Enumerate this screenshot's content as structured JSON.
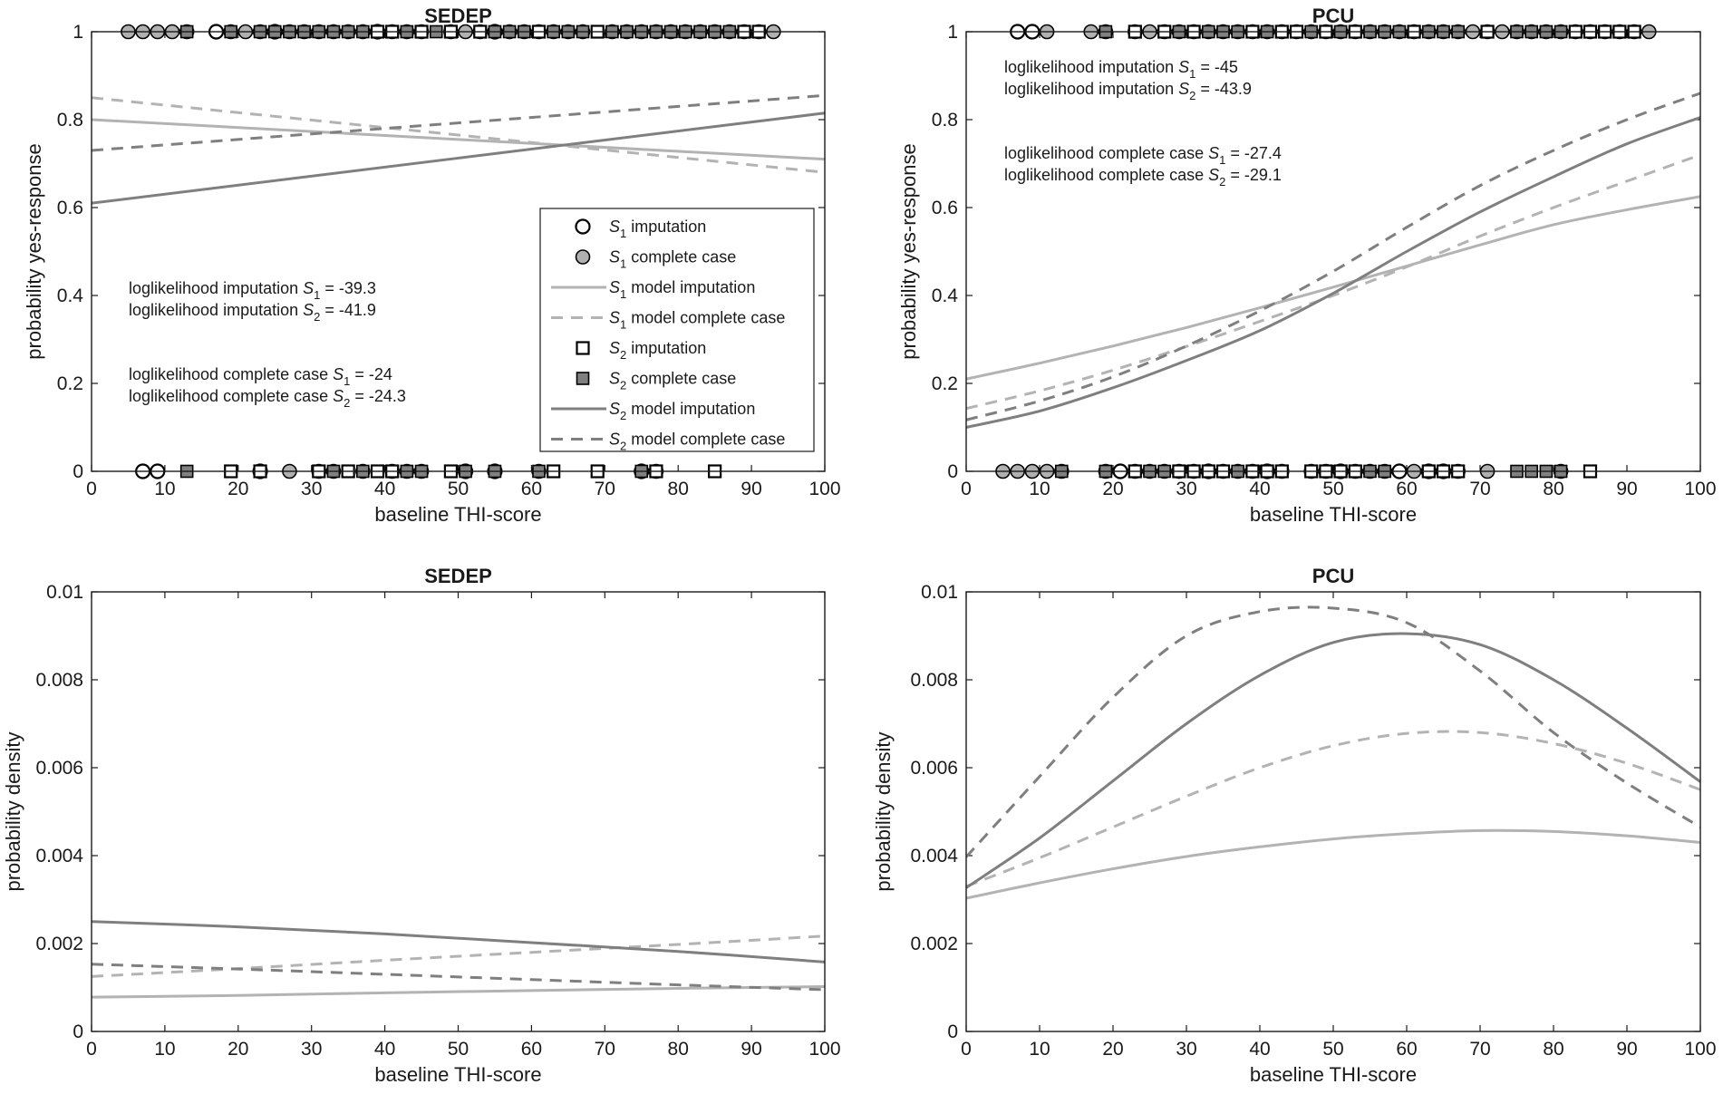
{
  "colors": {
    "s1_light": "#b3b3b3",
    "s1_marker_fill": "#b0b0b0",
    "s2_dark": "#7f7f7f",
    "s2_marker_fill": "#808080",
    "open_fill": "#ffffff",
    "axis": "#1a1a1a"
  },
  "legend": {
    "items": [
      {
        "key": "s1_imp_marker",
        "symbol": "open-circle",
        "sym": "S",
        "sub": "1",
        "text": "imputation"
      },
      {
        "key": "s1_cc_marker",
        "symbol": "filled-circle",
        "sym": "S",
        "sub": "1",
        "text": "complete case"
      },
      {
        "key": "s1_model_imp",
        "symbol": "solid-light",
        "sym": "S",
        "sub": "1",
        "text": "model imputation"
      },
      {
        "key": "s1_model_cc",
        "symbol": "dashed-light",
        "sym": "S",
        "sub": "1",
        "text": "model complete case"
      },
      {
        "key": "s2_imp_marker",
        "symbol": "open-square",
        "sym": "S",
        "sub": "2",
        "text": "imputation"
      },
      {
        "key": "s2_cc_marker",
        "symbol": "filled-square",
        "sym": "S",
        "sub": "2",
        "text": "complete case"
      },
      {
        "key": "s2_model_imp",
        "symbol": "solid-dark",
        "sym": "S",
        "sub": "2",
        "text": "model imputation"
      },
      {
        "key": "s2_model_cc",
        "symbol": "dashed-dark",
        "sym": "S",
        "sub": "2",
        "text": "model complete case"
      }
    ]
  },
  "chart_data": [
    {
      "id": "sedep-response",
      "type": "line",
      "title": "SEDEP",
      "xlabel": "baseline THI-score",
      "ylabel": "probability yes-response",
      "xlim": [
        0,
        100
      ],
      "ylim": [
        0,
        1
      ],
      "xticks": [
        "0",
        "10",
        "20",
        "30",
        "40",
        "50",
        "60",
        "70",
        "80",
        "90",
        "100"
      ],
      "yticks": [
        "0",
        "0.2",
        "0.4",
        "0.6",
        "0.8",
        "1"
      ],
      "legend": true,
      "annotations": [
        {
          "pre": "loglikelihood imputation ",
          "sym": "S",
          "sub": "1",
          "post": " = -39.3"
        },
        {
          "pre": "loglikelihood imputation ",
          "sym": "S",
          "sub": "2",
          "post": " = -41.9"
        },
        {
          "pre": "loglikelihood complete case ",
          "sym": "S",
          "sub": "1",
          "post": " = -24"
        },
        {
          "pre": "loglikelihood complete case ",
          "sym": "S",
          "sub": "2",
          "post": " = -24.3"
        }
      ],
      "series": [
        {
          "name": "S1 model imputation",
          "style": "solid-light",
          "x": [
            0,
            100
          ],
          "y": [
            0.8,
            0.71
          ]
        },
        {
          "name": "S1 model complete case",
          "style": "dashed-light",
          "x": [
            0,
            100
          ],
          "y": [
            0.85,
            0.68
          ]
        },
        {
          "name": "S2 model imputation",
          "style": "solid-dark",
          "x": [
            0,
            100
          ],
          "y": [
            0.61,
            0.815
          ]
        },
        {
          "name": "S2 model complete case",
          "style": "dashed-dark",
          "x": [
            0,
            100
          ],
          "y": [
            0.73,
            0.855
          ]
        }
      ],
      "markers": [
        {
          "type": "filled-circle",
          "y": 1,
          "x": [
            5,
            7,
            9,
            11,
            13,
            19,
            21,
            23,
            27,
            29,
            31,
            33,
            35,
            37,
            41,
            43,
            45,
            49,
            51,
            53,
            55,
            57,
            59,
            61,
            63,
            65,
            67,
            71,
            73,
            75,
            77,
            79,
            81,
            83,
            85,
            87,
            89,
            91,
            93
          ]
        },
        {
          "type": "open-circle",
          "y": 1,
          "x": [
            17,
            25,
            39,
            55
          ]
        },
        {
          "type": "filled-square",
          "y": 1,
          "x": [
            13,
            19,
            23,
            25,
            27,
            29,
            31,
            33,
            35,
            37,
            43,
            47,
            55,
            57,
            59,
            61,
            63,
            65,
            67,
            71,
            73,
            75,
            77,
            79,
            81,
            83,
            85,
            87
          ]
        },
        {
          "type": "open-square",
          "y": 1,
          "x": [
            39,
            41,
            45,
            49,
            53,
            61,
            69,
            89,
            91
          ]
        },
        {
          "type": "open-circle",
          "y": 0,
          "x": [
            7,
            9,
            23,
            51,
            55,
            75
          ]
        },
        {
          "type": "filled-circle",
          "y": 0,
          "x": [
            27,
            31,
            33,
            37,
            41,
            43,
            45,
            51,
            55,
            61,
            75,
            77
          ]
        },
        {
          "type": "filled-square",
          "y": 0,
          "x": [
            13,
            33,
            35,
            37,
            43,
            45,
            51,
            55,
            61,
            63,
            75,
            77
          ]
        },
        {
          "type": "open-square",
          "y": 0,
          "x": [
            19,
            23,
            31,
            35,
            39,
            41,
            49,
            63,
            69,
            77,
            85
          ]
        }
      ]
    },
    {
      "id": "pcu-response",
      "type": "line",
      "title": "PCU",
      "xlabel": "baseline THI-score",
      "ylabel": "probability yes-response",
      "xlim": [
        0,
        100
      ],
      "ylim": [
        0,
        1
      ],
      "xticks": [
        "0",
        "10",
        "20",
        "30",
        "40",
        "50",
        "60",
        "70",
        "80",
        "90",
        "100"
      ],
      "yticks": [
        "0",
        "0.2",
        "0.4",
        "0.6",
        "0.8",
        "1"
      ],
      "legend": false,
      "annotations": [
        {
          "pre": "loglikelihood imputation ",
          "sym": "S",
          "sub": "1",
          "post": " = -45"
        },
        {
          "pre": "loglikelihood imputation ",
          "sym": "S",
          "sub": "2",
          "post": " = -43.9"
        },
        {
          "pre": "loglikelihood complete case ",
          "sym": "S",
          "sub": "1",
          "post": " = -27.4"
        },
        {
          "pre": "loglikelihood complete case ",
          "sym": "S",
          "sub": "2",
          "post": " = -29.1"
        }
      ],
      "series": [
        {
          "name": "S1 model imputation",
          "style": "solid-light",
          "x": [
            0,
            10,
            20,
            30,
            40,
            50,
            60,
            70,
            80,
            90,
            100
          ],
          "y": [
            0.21,
            0.246,
            0.285,
            0.327,
            0.372,
            0.419,
            0.467,
            0.515,
            0.561,
            0.595,
            0.625
          ]
        },
        {
          "name": "S1 model complete case",
          "style": "dashed-light",
          "x": [
            0,
            10,
            20,
            30,
            40,
            50,
            60,
            70,
            80,
            90,
            100
          ],
          "y": [
            0.143,
            0.183,
            0.23,
            0.284,
            0.341,
            0.4,
            0.465,
            0.535,
            0.6,
            0.66,
            0.72
          ]
        },
        {
          "name": "S2 model imputation",
          "style": "solid-dark",
          "x": [
            0,
            10,
            20,
            30,
            40,
            50,
            60,
            70,
            80,
            90,
            100
          ],
          "y": [
            0.1,
            0.137,
            0.19,
            0.252,
            0.32,
            0.405,
            0.5,
            0.59,
            0.67,
            0.745,
            0.805
          ]
        },
        {
          "name": "S2 model complete case",
          "style": "dashed-dark",
          "x": [
            0,
            10,
            20,
            30,
            40,
            50,
            60,
            70,
            80,
            90,
            100
          ],
          "y": [
            0.117,
            0.16,
            0.215,
            0.285,
            0.365,
            0.455,
            0.555,
            0.65,
            0.73,
            0.8,
            0.86
          ]
        }
      ],
      "markers": [
        {
          "type": "open-circle",
          "y": 1,
          "x": [
            7,
            9
          ]
        },
        {
          "type": "filled-circle",
          "y": 1,
          "x": [
            11,
            17,
            19,
            23,
            25,
            27,
            29,
            31,
            33,
            35,
            37,
            39,
            41,
            43,
            45,
            47,
            49,
            51,
            53,
            55,
            57,
            59,
            61,
            63,
            65,
            67,
            69,
            71,
            73,
            75,
            77,
            79,
            81,
            83,
            85,
            87,
            89,
            91,
            93
          ]
        },
        {
          "type": "filled-square",
          "y": 1,
          "x": [
            19,
            23,
            29,
            33,
            35,
            37,
            41,
            47,
            51,
            55,
            57,
            59,
            63,
            65,
            67,
            75,
            77,
            79,
            81,
            83,
            85
          ]
        },
        {
          "type": "open-square",
          "y": 1,
          "x": [
            23,
            27,
            31,
            39,
            43,
            45,
            49,
            53,
            61,
            71,
            83,
            85,
            87,
            89,
            91
          ]
        },
        {
          "type": "filled-circle",
          "y": 0,
          "x": [
            5,
            7,
            9,
            11,
            13,
            19,
            21,
            23,
            25,
            27,
            29,
            31,
            33,
            35,
            37,
            39,
            41,
            43,
            47,
            49,
            51,
            53,
            55,
            57,
            59,
            61,
            63,
            65,
            67,
            71,
            81
          ]
        },
        {
          "type": "open-circle",
          "y": 0,
          "x": [
            21,
            33,
            41,
            51,
            59,
            63,
            65
          ]
        },
        {
          "type": "filled-square",
          "y": 0,
          "x": [
            13,
            19,
            23,
            25,
            27,
            29,
            31,
            33,
            35,
            37,
            39,
            43,
            49,
            51,
            53,
            55,
            57,
            75,
            77,
            79,
            81
          ]
        },
        {
          "type": "open-square",
          "y": 0,
          "x": [
            23,
            29,
            31,
            33,
            35,
            39,
            41,
            43,
            47,
            49,
            51,
            53,
            63,
            65,
            67,
            85
          ]
        }
      ]
    },
    {
      "id": "sedep-density",
      "type": "line",
      "title": "SEDEP",
      "xlabel": "baseline THI-score",
      "ylabel": "probability density",
      "xlim": [
        0,
        100
      ],
      "ylim": [
        0,
        0.01
      ],
      "xticks": [
        "0",
        "10",
        "20",
        "30",
        "40",
        "50",
        "60",
        "70",
        "80",
        "90",
        "100"
      ],
      "yticks": [
        "0",
        "0.002",
        "0.004",
        "0.006",
        "0.008",
        "0.01"
      ],
      "legend": false,
      "annotations": [],
      "series": [
        {
          "name": "S1 model imputation",
          "style": "solid-light",
          "x": [
            0,
            20,
            40,
            60,
            80,
            100
          ],
          "y": [
            0.00078,
            0.00082,
            0.00088,
            0.00093,
            0.00098,
            0.00102
          ]
        },
        {
          "name": "S1 model complete case",
          "style": "dashed-light",
          "x": [
            0,
            20,
            40,
            60,
            80,
            100
          ],
          "y": [
            0.00125,
            0.00143,
            0.00162,
            0.0018,
            0.00198,
            0.00217
          ]
        },
        {
          "name": "S2 model imputation",
          "style": "solid-dark",
          "x": [
            0,
            20,
            40,
            60,
            80,
            100
          ],
          "y": [
            0.0025,
            0.00238,
            0.00222,
            0.00202,
            0.00182,
            0.00158
          ]
        },
        {
          "name": "S2 model complete case",
          "style": "dashed-dark",
          "x": [
            0,
            20,
            40,
            60,
            80,
            100
          ],
          "y": [
            0.00153,
            0.00142,
            0.0013,
            0.00118,
            0.00106,
            0.00095
          ]
        }
      ]
    },
    {
      "id": "pcu-density",
      "type": "line",
      "title": "PCU",
      "xlabel": "baseline THI-score",
      "ylabel": "probability density",
      "xlim": [
        0,
        100
      ],
      "ylim": [
        0,
        0.01
      ],
      "xticks": [
        "0",
        "10",
        "20",
        "30",
        "40",
        "50",
        "60",
        "70",
        "80",
        "90",
        "100"
      ],
      "yticks": [
        "0",
        "0.002",
        "0.004",
        "0.006",
        "0.008",
        "0.01"
      ],
      "legend": false,
      "annotations": [],
      "series": [
        {
          "name": "S1 model imputation",
          "style": "solid-light",
          "x": [
            0,
            10,
            20,
            30,
            40,
            50,
            60,
            70,
            80,
            90,
            100
          ],
          "y": [
            0.00303,
            0.00338,
            0.0037,
            0.00398,
            0.0042,
            0.00438,
            0.0045,
            0.00457,
            0.00455,
            0.00445,
            0.0043
          ]
        },
        {
          "name": "S1 model complete case",
          "style": "dashed-light",
          "x": [
            0,
            10,
            20,
            30,
            40,
            50,
            60,
            70,
            80,
            90,
            100
          ],
          "y": [
            0.0033,
            0.00395,
            0.00465,
            0.00535,
            0.006,
            0.0065,
            0.00678,
            0.0068,
            0.00655,
            0.0061,
            0.0055
          ]
        },
        {
          "name": "S2 model imputation",
          "style": "solid-dark",
          "x": [
            0,
            10,
            20,
            30,
            40,
            50,
            60,
            70,
            80,
            90,
            100
          ],
          "y": [
            0.00327,
            0.0044,
            0.0057,
            0.007,
            0.0081,
            0.00885,
            0.00905,
            0.0088,
            0.008,
            0.0069,
            0.00568
          ]
        },
        {
          "name": "S2 model complete case",
          "style": "dashed-dark",
          "x": [
            0,
            10,
            20,
            30,
            40,
            50,
            60,
            70,
            80,
            90,
            100
          ],
          "y": [
            0.00397,
            0.0058,
            0.0076,
            0.009,
            0.00955,
            0.00963,
            0.0093,
            0.0082,
            0.0068,
            0.00565,
            0.00465
          ]
        }
      ]
    }
  ]
}
